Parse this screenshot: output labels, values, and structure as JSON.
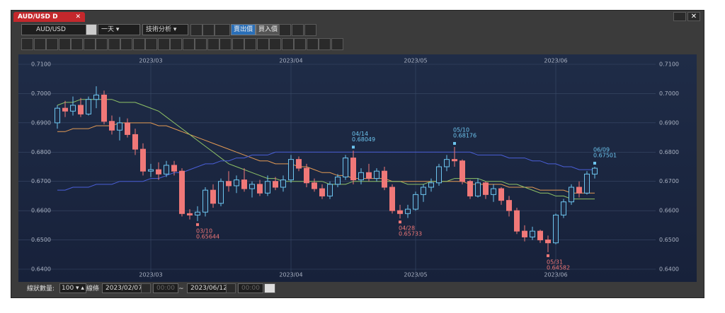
{
  "ui": {
    "tab_title": "AUD/USD D",
    "symbol": "AUD/USD",
    "timeframe": "一天",
    "analysis_menu": "技術分析",
    "sell_button": "賣出價",
    "buy_button": "買入價",
    "bar_count_label": "線狀數量:",
    "bar_count": "100",
    "line_label": "線條",
    "start_date": "2023/02/07",
    "start_time": "00:00",
    "range_sep": "~",
    "end_date": "2023/06/12",
    "end_time": "00:00"
  },
  "chart_data": {
    "type": "candlestick",
    "categories": [
      null,
      null,
      null,
      null,
      null,
      null,
      null,
      null,
      null,
      null,
      null,
      null,
      "2023/03",
      null,
      null,
      null,
      null,
      null,
      null,
      null,
      null,
      null,
      null,
      null,
      null,
      null,
      null,
      null,
      null,
      null,
      "2023/04",
      null,
      null,
      null,
      null,
      null,
      null,
      null,
      null,
      null,
      null,
      null,
      null,
      null,
      null,
      null,
      "2023/05",
      null,
      null,
      null,
      null,
      null,
      null,
      null,
      null,
      null,
      null,
      null,
      null,
      null,
      null,
      null,
      null,
      null,
      "2023/06",
      null,
      null,
      null,
      null,
      null
    ],
    "open": [
      0.69,
      0.695,
      0.694,
      0.696,
      0.693,
      0.698,
      0.6995,
      0.6905,
      0.6875,
      0.69,
      0.686,
      0.681,
      0.6735,
      0.674,
      0.6725,
      0.6755,
      0.6735,
      0.659,
      0.6585,
      0.6595,
      0.667,
      0.6625,
      0.67,
      0.6685,
      0.6705,
      0.6675,
      0.669,
      0.666,
      0.67,
      0.668,
      0.6705,
      0.6775,
      0.6745,
      0.6695,
      0.6675,
      0.665,
      0.669,
      0.6715,
      0.678,
      0.6705,
      0.673,
      0.671,
      0.6735,
      0.668,
      0.66,
      0.659,
      0.6605,
      0.6655,
      0.668,
      0.6695,
      0.675,
      0.6775,
      0.677,
      0.67,
      0.665,
      0.6695,
      0.6655,
      0.6675,
      0.6635,
      0.66,
      0.653,
      0.651,
      0.653,
      0.65,
      0.649,
      0.6585,
      0.663,
      0.668,
      0.666,
      0.6725
    ],
    "high": [
      0.696,
      0.6975,
      0.699,
      0.6985,
      0.699,
      0.7025,
      0.701,
      0.6925,
      0.692,
      0.6915,
      0.688,
      0.683,
      0.676,
      0.6765,
      0.677,
      0.677,
      0.6745,
      0.6605,
      0.6615,
      0.668,
      0.669,
      0.671,
      0.6735,
      0.672,
      0.6745,
      0.67,
      0.6705,
      0.672,
      0.6715,
      0.672,
      0.679,
      0.6785,
      0.676,
      0.671,
      0.669,
      0.67,
      0.6725,
      0.679,
      0.68049,
      0.6745,
      0.676,
      0.6745,
      0.675,
      0.669,
      0.662,
      0.662,
      0.6665,
      0.669,
      0.671,
      0.676,
      0.679,
      0.68176,
      0.6775,
      0.6705,
      0.671,
      0.67,
      0.669,
      0.668,
      0.665,
      0.661,
      0.655,
      0.6545,
      0.6535,
      0.6515,
      0.659,
      0.664,
      0.669,
      0.67,
      0.6735,
      0.67501
    ],
    "low": [
      0.688,
      0.692,
      0.6925,
      0.692,
      0.6925,
      0.695,
      0.6895,
      0.686,
      0.684,
      0.685,
      0.679,
      0.672,
      0.6715,
      0.6705,
      0.6715,
      0.672,
      0.658,
      0.657,
      0.65644,
      0.658,
      0.661,
      0.6615,
      0.6665,
      0.666,
      0.6665,
      0.6645,
      0.665,
      0.665,
      0.667,
      0.6665,
      0.6695,
      0.6735,
      0.668,
      0.6665,
      0.664,
      0.664,
      0.668,
      0.6705,
      0.669,
      0.669,
      0.67,
      0.67,
      0.667,
      0.659,
      0.65733,
      0.6575,
      0.66,
      0.663,
      0.6665,
      0.6685,
      0.6735,
      0.675,
      0.669,
      0.664,
      0.6645,
      0.664,
      0.663,
      0.662,
      0.658,
      0.652,
      0.6495,
      0.65,
      0.649,
      0.64582,
      0.6485,
      0.6575,
      0.662,
      0.6645,
      0.6655,
      0.671
    ],
    "close": [
      0.695,
      0.694,
      0.696,
      0.693,
      0.698,
      0.6995,
      0.6905,
      0.6875,
      0.69,
      0.686,
      0.681,
      0.6735,
      0.674,
      0.6725,
      0.6755,
      0.6735,
      0.659,
      0.6585,
      0.6595,
      0.667,
      0.6625,
      0.67,
      0.6685,
      0.6705,
      0.6675,
      0.669,
      0.666,
      0.67,
      0.668,
      0.6705,
      0.6775,
      0.6745,
      0.6695,
      0.6675,
      0.665,
      0.669,
      0.6715,
      0.678,
      0.6705,
      0.673,
      0.671,
      0.6735,
      0.668,
      0.66,
      0.659,
      0.6605,
      0.6655,
      0.668,
      0.6695,
      0.675,
      0.6775,
      0.677,
      0.67,
      0.665,
      0.6695,
      0.6655,
      0.6675,
      0.6635,
      0.66,
      0.653,
      0.651,
      0.653,
      0.65,
      0.649,
      0.6585,
      0.663,
      0.668,
      0.666,
      0.6725,
      0.6745
    ],
    "up_color": "#6cc4ee",
    "down_color": "#f07878",
    "lines": [
      {
        "color": "#e39a54",
        "values": [
          0.687,
          0.687,
          0.688,
          0.688,
          0.688,
          0.689,
          0.689,
          0.689,
          0.69,
          0.69,
          0.69,
          0.69,
          0.69,
          0.689,
          0.689,
          0.688,
          0.687,
          0.686,
          0.685,
          0.684,
          0.683,
          0.682,
          0.681,
          0.68,
          0.679,
          0.678,
          0.677,
          0.677,
          0.676,
          0.676,
          0.676,
          0.675,
          0.675,
          0.674,
          0.673,
          0.673,
          0.672,
          0.672,
          0.671,
          0.671,
          0.671,
          0.671,
          0.671,
          0.67,
          0.67,
          0.67,
          0.67,
          0.67,
          0.67,
          0.67,
          0.67,
          0.67,
          0.67,
          0.669,
          0.669,
          0.669,
          0.669,
          0.669,
          0.668,
          0.668,
          0.668,
          0.668,
          0.667,
          0.667,
          0.667,
          0.667,
          0.666,
          0.666,
          0.666,
          0.666
        ]
      },
      {
        "color": "#8fc266",
        "values": [
          0.696,
          0.697,
          0.697,
          0.698,
          0.698,
          0.698,
          0.698,
          0.698,
          0.697,
          0.697,
          0.697,
          0.696,
          0.695,
          0.694,
          0.692,
          0.69,
          0.688,
          0.686,
          0.684,
          0.682,
          0.68,
          0.678,
          0.676,
          0.675,
          0.674,
          0.673,
          0.672,
          0.671,
          0.671,
          0.67,
          0.67,
          0.67,
          0.67,
          0.67,
          0.67,
          0.669,
          0.669,
          0.669,
          0.67,
          0.67,
          0.67,
          0.67,
          0.67,
          0.67,
          0.67,
          0.669,
          0.669,
          0.669,
          0.67,
          0.67,
          0.67,
          0.671,
          0.671,
          0.671,
          0.671,
          0.67,
          0.67,
          0.67,
          0.669,
          0.669,
          0.668,
          0.667,
          0.666,
          0.666,
          0.665,
          0.665,
          0.664,
          0.664,
          0.664,
          0.664
        ]
      },
      {
        "color": "#4a5fd8",
        "values": [
          0.667,
          0.667,
          0.668,
          0.668,
          0.668,
          0.669,
          0.669,
          0.669,
          0.67,
          0.67,
          0.67,
          0.67,
          0.671,
          0.671,
          0.672,
          0.673,
          0.673,
          0.674,
          0.675,
          0.676,
          0.676,
          0.677,
          0.677,
          0.678,
          0.678,
          0.679,
          0.679,
          0.679,
          0.68,
          0.68,
          0.68,
          0.68,
          0.68,
          0.68,
          0.68,
          0.68,
          0.68,
          0.68,
          0.68,
          0.68,
          0.68,
          0.68,
          0.68,
          0.68,
          0.68,
          0.68,
          0.68,
          0.68,
          0.68,
          0.68,
          0.68,
          0.68,
          0.68,
          0.68,
          0.679,
          0.679,
          0.679,
          0.679,
          0.678,
          0.678,
          0.678,
          0.677,
          0.677,
          0.676,
          0.676,
          0.675,
          0.675,
          0.674,
          0.674,
          0.674
        ]
      }
    ],
    "annotations": [
      {
        "date": "03/10",
        "value": 0.65644,
        "color": "#f07878"
      },
      {
        "date": "04/14",
        "value": 0.68049,
        "color": "#6cc4ee"
      },
      {
        "date": "04/28",
        "value": 0.65733,
        "color": "#f07878"
      },
      {
        "date": "05/10",
        "value": 0.68176,
        "color": "#6cc4ee"
      },
      {
        "date": "05/31",
        "value": 0.64582,
        "color": "#f07878"
      },
      {
        "date": "06/09",
        "value": 0.67501,
        "color": "#6cc4ee"
      }
    ],
    "ylim": [
      0.64,
      0.71
    ],
    "yticks": [
      {
        "value": 0.64,
        "label": "0.6400"
      },
      {
        "value": 0.65,
        "label": "0.6500"
      },
      {
        "value": 0.66,
        "label": "0.6600"
      },
      {
        "value": 0.67,
        "label": "0.6700"
      },
      {
        "value": 0.68,
        "label": "0.6800"
      },
      {
        "value": 0.69,
        "label": "0.6900"
      },
      {
        "value": 0.7,
        "label": "0.7000"
      },
      {
        "value": 0.71,
        "label": "0.7100"
      }
    ],
    "grid": true
  }
}
